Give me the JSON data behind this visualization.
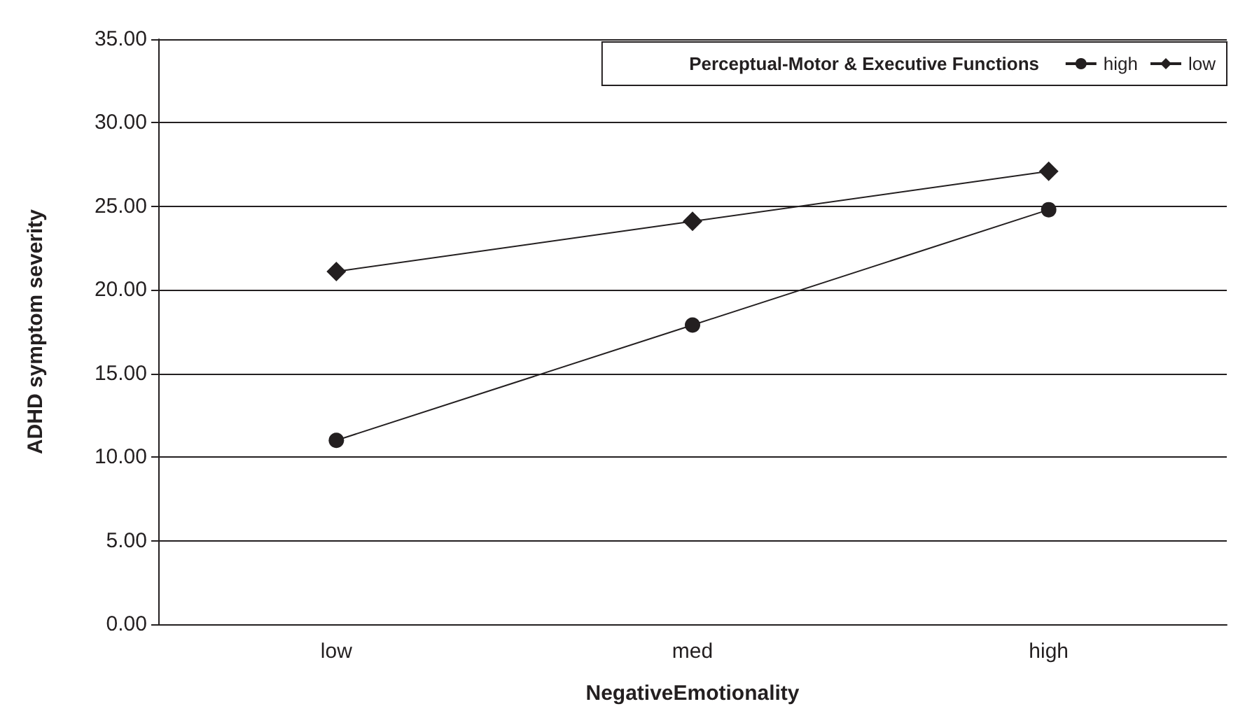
{
  "chart_data": {
    "type": "line",
    "xlabel": "NegativeEmotionality",
    "ylabel": "ADHD symptom severity",
    "legend_title": "Perceptual-Motor & Executive Functions",
    "legend": "top right",
    "categories": [
      "low",
      "med",
      "high"
    ],
    "series": [
      {
        "name": "high",
        "color": "#231f20",
        "values": [
          11.0,
          17.9,
          24.8
        ],
        "marker": "circle"
      },
      {
        "name": "low",
        "color": "#231f20",
        "values": [
          21.1,
          24.1,
          27.1
        ],
        "marker": "diamond"
      }
    ],
    "ylim": [
      0,
      35
    ],
    "yticks": [
      {
        "value": 0,
        "label": "0.00"
      },
      {
        "value": 5,
        "label": "5.00"
      },
      {
        "value": 10,
        "label": "10.00"
      },
      {
        "value": 15,
        "label": "15.00"
      },
      {
        "value": 20,
        "label": "20.00"
      },
      {
        "value": 25,
        "label": "25.00"
      },
      {
        "value": 30,
        "label": "30.00"
      },
      {
        "value": 35,
        "label": "35.00"
      }
    ],
    "grid": "y",
    "line_style": "solid"
  }
}
